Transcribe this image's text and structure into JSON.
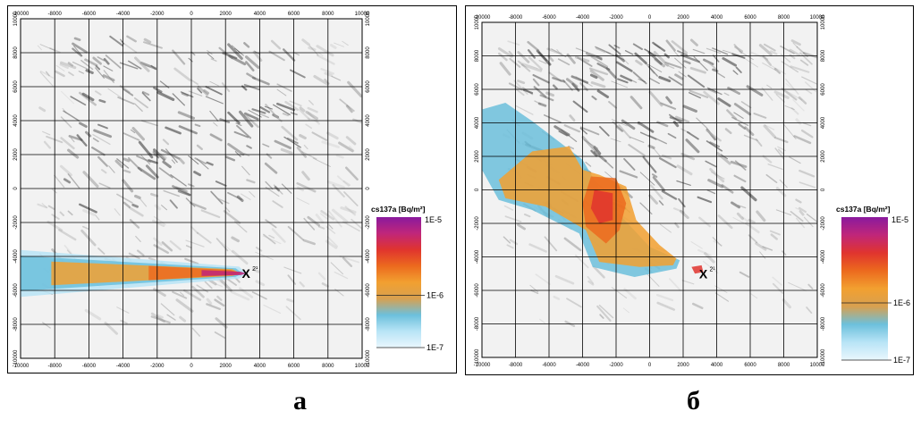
{
  "panels": [
    {
      "id": "a",
      "caption": "а",
      "x_ticks": [
        "-10000",
        "-8000",
        "-6000",
        "-4000",
        "-2000",
        "0",
        "2000",
        "4000",
        "6000",
        "8000",
        "10000"
      ],
      "y_ticks": [
        "10000",
        "8000",
        "6000",
        "4000",
        "2000",
        "0",
        "-2000",
        "-4000",
        "-6000",
        "-8000",
        "-10000"
      ],
      "source_marker": "X",
      "source_label": "2¹",
      "legend": {
        "title": "cs137a [Bq/m²]",
        "max": "1E-5",
        "mid": "1E-6",
        "min": "1E-7"
      }
    },
    {
      "id": "b",
      "caption": "б",
      "x_ticks": [
        "-10000",
        "-8000",
        "-6000",
        "-4000",
        "-2000",
        "0",
        "2000",
        "4000",
        "6000",
        "8000",
        "10000"
      ],
      "y_ticks": [
        "10000",
        "8000",
        "6000",
        "4000",
        "2000",
        "0",
        "-2000",
        "-4000",
        "-6000",
        "-8000",
        "-10000"
      ],
      "source_marker": "X",
      "source_label": "2¹",
      "legend": {
        "title": "cs137a [Bq/m²]",
        "max": "1E-5",
        "mid": "1E-6",
        "min": "1E-7"
      }
    }
  ],
  "colors": {
    "scale": [
      "#8a1a9e",
      "#c0267a",
      "#e0342e",
      "#ec6a1e",
      "#f2a030",
      "#d8a050",
      "#6cc0dc",
      "#b8e4f6",
      "#eaf7fd"
    ],
    "terrain_dark": "#4a4a4a",
    "terrain_light": "#e8e8e8",
    "grid": "#000000"
  }
}
